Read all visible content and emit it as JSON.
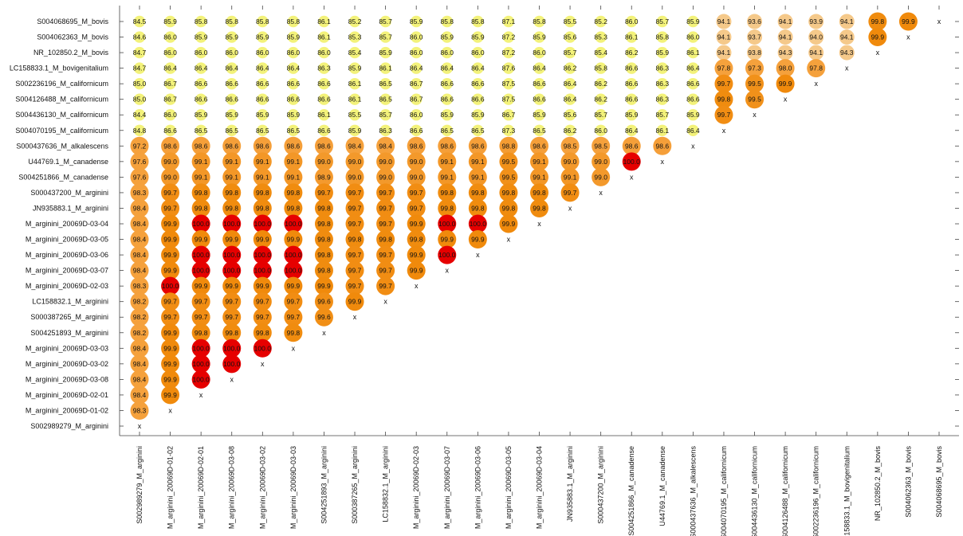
{
  "chart_data": {
    "type": "heatmap",
    "title": "",
    "xlabel": "",
    "ylabel": "",
    "diagonal_marker": "x",
    "labels": [
      "S002989279_M_arginini",
      "M_arginini_20069D-01-02",
      "M_arginini_20069D-02-01",
      "M_arginini_20069D-03-08",
      "M_arginini_20069D-03-02",
      "M_arginini_20069D-03-03",
      "S004251893_M_arginini",
      "S000387265_M_arginini",
      "LC158832.1_M_arginini",
      "M_arginini_20069D-02-03",
      "M_arginini_20069D-03-07",
      "M_arginini_20069D-03-06",
      "M_arginini_20069D-03-05",
      "M_arginini_20069D-03-04",
      "JN935883.1_M_arginini",
      "S000437200_M_arginini",
      "S004251866_M_canadense",
      "U44769.1_M_canadense",
      "S000437636_M_alkalescens",
      "S004070195_M_californicum",
      "S004436130_M_californicum",
      "S004126488_M_californicum",
      "S002236196_M_californicum",
      "LC158833.1_M_bovigenitalium",
      "NR_102850.2_M_bovis",
      "S004062363_M_bovis",
      "S004068695_M_bovis"
    ],
    "rows": [
      [
        84.5,
        85.9,
        85.8,
        85.8,
        85.8,
        85.8,
        86.1,
        85.2,
        85.7,
        85.9,
        85.8,
        85.8,
        87.1,
        85.8,
        85.5,
        85.2,
        86.0,
        85.7,
        85.9,
        94.1,
        93.6,
        94.1,
        93.9,
        94.1,
        99.8,
        99.9
      ],
      [
        84.6,
        86.0,
        85.9,
        85.9,
        85.9,
        85.9,
        86.1,
        85.3,
        85.7,
        86.0,
        85.9,
        85.9,
        87.2,
        85.9,
        85.6,
        85.3,
        86.1,
        85.8,
        86.0,
        94.1,
        93.7,
        94.1,
        94.0,
        94.1,
        99.9
      ],
      [
        84.7,
        86.0,
        86.0,
        86.0,
        86.0,
        86.0,
        86.0,
        85.4,
        85.9,
        86.0,
        86.0,
        86.0,
        87.2,
        86.0,
        85.7,
        85.4,
        86.2,
        85.9,
        86.1,
        94.1,
        93.8,
        94.3,
        94.1,
        94.3
      ],
      [
        84.7,
        86.4,
        86.4,
        86.4,
        86.4,
        86.4,
        86.3,
        85.9,
        86.1,
        86.4,
        86.4,
        86.4,
        87.6,
        86.4,
        86.2,
        85.8,
        86.6,
        86.3,
        86.4,
        97.8,
        97.3,
        98.0,
        97.8
      ],
      [
        85.0,
        86.7,
        86.6,
        86.6,
        86.6,
        86.6,
        86.6,
        86.1,
        86.5,
        86.7,
        86.6,
        86.6,
        87.5,
        86.6,
        86.4,
        86.2,
        86.6,
        86.3,
        86.6,
        99.7,
        99.5,
        99.9
      ],
      [
        85.0,
        86.7,
        86.6,
        86.6,
        86.6,
        86.6,
        86.6,
        86.1,
        86.5,
        86.7,
        86.6,
        86.6,
        87.5,
        86.6,
        86.4,
        86.2,
        86.6,
        86.3,
        86.6,
        99.8,
        99.5
      ],
      [
        84.4,
        86.0,
        85.9,
        85.9,
        85.9,
        85.9,
        86.1,
        85.5,
        85.7,
        86.0,
        85.9,
        85.9,
        86.7,
        85.9,
        85.6,
        85.7,
        85.9,
        85.7,
        85.9,
        99.7
      ],
      [
        84.8,
        86.6,
        86.5,
        86.5,
        86.5,
        86.5,
        86.6,
        85.9,
        86.3,
        86.6,
        86.5,
        86.5,
        87.3,
        86.5,
        86.2,
        86.0,
        86.4,
        86.1,
        86.4
      ],
      [
        97.2,
        98.6,
        98.6,
        98.6,
        98.6,
        98.6,
        98.6,
        98.4,
        98.4,
        98.6,
        98.6,
        98.6,
        98.8,
        98.6,
        98.5,
        98.5,
        98.6,
        98.6
      ],
      [
        97.6,
        99.0,
        99.1,
        99.1,
        99.1,
        99.1,
        99.0,
        99.0,
        99.0,
        99.0,
        99.1,
        99.1,
        99.5,
        99.1,
        99.0,
        99.0,
        100.0
      ],
      [
        97.6,
        99.0,
        99.1,
        99.1,
        99.1,
        99.1,
        98.9,
        99.0,
        99.0,
        99.0,
        99.1,
        99.1,
        99.5,
        99.1,
        99.1,
        99.0
      ],
      [
        98.3,
        99.7,
        99.8,
        99.8,
        99.8,
        99.8,
        99.7,
        99.7,
        99.7,
        99.7,
        99.8,
        99.8,
        99.8,
        99.8,
        99.7
      ],
      [
        98.4,
        99.7,
        99.8,
        99.8,
        99.8,
        99.8,
        99.8,
        99.7,
        99.7,
        99.7,
        99.8,
        99.8,
        99.8,
        99.8
      ],
      [
        98.4,
        99.9,
        100.0,
        100.0,
        100.0,
        100.0,
        99.8,
        99.7,
        99.7,
        99.9,
        100.0,
        100.0,
        99.9
      ],
      [
        98.4,
        99.9,
        99.9,
        99.9,
        99.9,
        99.9,
        99.8,
        99.8,
        99.8,
        99.8,
        99.9,
        99.9
      ],
      [
        98.4,
        99.9,
        100.0,
        100.0,
        100.0,
        100.0,
        99.8,
        99.7,
        99.7,
        99.9,
        100.0
      ],
      [
        98.4,
        99.9,
        100.0,
        100.0,
        100.0,
        100.0,
        99.8,
        99.7,
        99.7,
        99.9
      ],
      [
        98.3,
        100.0,
        99.9,
        99.9,
        99.9,
        99.9,
        99.9,
        99.7,
        99.7
      ],
      [
        98.2,
        99.7,
        99.7,
        99.7,
        99.7,
        99.7,
        99.6,
        99.9
      ],
      [
        98.2,
        99.7,
        99.7,
        99.7,
        99.7,
        99.7,
        99.6
      ],
      [
        98.2,
        99.9,
        99.8,
        99.8,
        99.8,
        99.8
      ],
      [
        98.4,
        99.9,
        100.0,
        100.0,
        100.0
      ],
      [
        98.4,
        99.9,
        100.0,
        100.0
      ],
      [
        98.4,
        99.9,
        100.0
      ],
      [
        98.4,
        99.9
      ],
      [
        98.3
      ],
      []
    ],
    "color_stops": {
      "low": "#f3f27a",
      "mid_low": "#f5c98a",
      "mid": "#f5a13c",
      "high": "#f08a0c",
      "max": "#e60000"
    }
  }
}
